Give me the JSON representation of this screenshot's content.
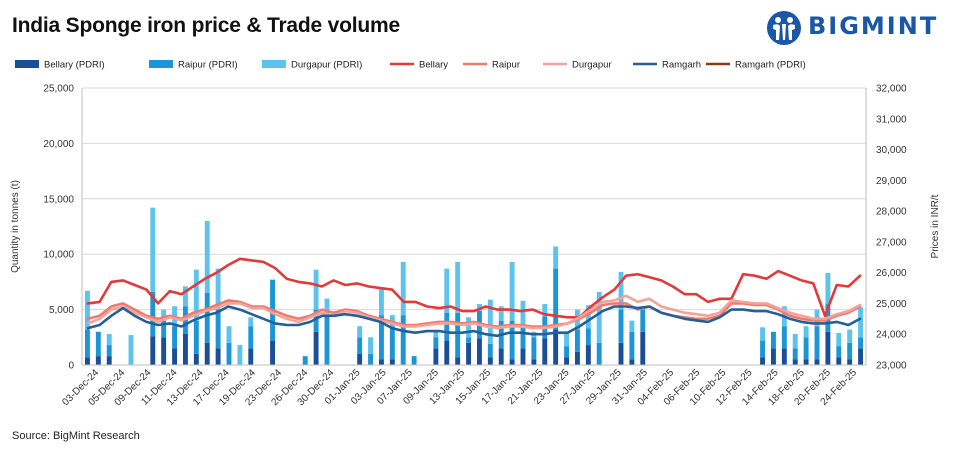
{
  "header": {
    "title": "India Sponge iron price & Trade volume",
    "brand": "BIGMINT"
  },
  "footer": {
    "source": "Source: BigMint Research"
  },
  "colors": {
    "bellary_pdri": "#1a4e96",
    "raipur_pdri": "#1b95d6",
    "durgapur_pdri": "#5bc3ec",
    "bellary": "#e03a3a",
    "raipur": "#ee7a6e",
    "durgapur": "#f2a39a",
    "ramgarh": "#245f97",
    "ramgarh_pdri": "#8b3a17",
    "brand": "#1a57a6"
  },
  "chart_data": {
    "type": "bar",
    "ylabel": "Quantity in tonnes (t)",
    "y2label": "Prices in INR/t",
    "ylim": [
      0,
      25000
    ],
    "y2lim": [
      23000,
      32000
    ],
    "yticks": [
      "0",
      "5,000",
      "10,000",
      "15,000",
      "20,000",
      "25,000"
    ],
    "y2ticks": [
      "23,000",
      "24,000",
      "25,000",
      "26,000",
      "27,000",
      "28,000",
      "29,000",
      "30,000",
      "31,000",
      "32,000"
    ],
    "x_tick_labels": [
      "03-Dec-24",
      "05-Dec-24",
      "09-Dec-24",
      "11-Dec-24",
      "13-Dec-24",
      "17-Dec-24",
      "19-Dec-24",
      "23-Dec-24",
      "26-Dec-24",
      "30-Dec-24",
      "01-Jan-25",
      "03-Jan-25",
      "07-Jan-25",
      "09-Jan-25",
      "13-Jan-25",
      "15-Jan-25",
      "17-Jan-25",
      "21-Jan-25",
      "23-Jan-25",
      "27-Jan-25",
      "29-Jan-25",
      "31-Jan-25",
      "04-Feb-25",
      "06-Feb-25",
      "10-Feb-25",
      "12-Feb-25",
      "14-Feb-25",
      "18-Feb-25",
      "20-Feb-25",
      "24-Feb-25"
    ],
    "grid": true,
    "legend_position": "top",
    "stacked_series": [
      {
        "name": "Bellary (PDRI)",
        "color_key": "bellary_pdri",
        "values": [
          700,
          800,
          800,
          0,
          0,
          0,
          2600,
          2500,
          1500,
          2800,
          1000,
          2000,
          1500,
          0,
          0,
          1500,
          0,
          2200,
          0,
          0,
          0,
          3000,
          0,
          0,
          0,
          1000,
          0,
          500,
          500,
          0,
          0,
          0,
          1500,
          2200,
          700,
          2000,
          2400,
          700,
          1500,
          500,
          1500,
          500,
          2400,
          3200,
          700,
          1200,
          1800,
          0,
          0,
          2000,
          500,
          3000,
          0,
          0,
          0,
          0,
          0,
          0,
          0,
          0,
          0,
          0,
          700,
          1500,
          1500,
          500,
          500,
          500,
          3000,
          700,
          500,
          1500
        ]
      },
      {
        "name": "Raipur (PDRI)",
        "color_key": "raipur_pdri",
        "values": [
          2500,
          2200,
          1000,
          0,
          0,
          0,
          4000,
          1500,
          2000,
          2500,
          3000,
          4500,
          3500,
          2000,
          0,
          2000,
          0,
          5500,
          0,
          0,
          800,
          2000,
          4500,
          0,
          0,
          1500,
          1000,
          4000,
          3000,
          4500,
          800,
          0,
          1000,
          2500,
          4000,
          500,
          2500,
          1200,
          2500,
          3500,
          2000,
          2000,
          2000,
          5500,
          1000,
          2000,
          1500,
          2000,
          0,
          3000,
          2500,
          2000,
          0,
          0,
          0,
          0,
          0,
          0,
          0,
          0,
          0,
          0,
          1500,
          1500,
          2000,
          1000,
          2000,
          3000,
          2500,
          1000,
          1500,
          1000
        ]
      },
      {
        "name": "Durgapur (PDRI)",
        "color_key": "durgapur_pdri",
        "values": [
          3500,
          0,
          1000,
          0,
          2700,
          0,
          7600,
          1000,
          1800,
          1800,
          4600,
          6500,
          3700,
          1500,
          1800,
          800,
          0,
          0,
          0,
          0,
          0,
          3600,
          1500,
          0,
          0,
          1000,
          1500,
          2500,
          1000,
          4800,
          0,
          0,
          600,
          4000,
          4600,
          1800,
          600,
          4000,
          1300,
          5300,
          2300,
          500,
          1100,
          2000,
          1300,
          1800,
          2100,
          4600,
          0,
          3400,
          1000,
          0,
          0,
          0,
          0,
          0,
          0,
          0,
          0,
          0,
          0,
          0,
          1200,
          0,
          1800,
          1300,
          1000,
          1500,
          2800,
          1200,
          1200,
          2700
        ]
      }
    ],
    "line_series": [
      {
        "name": "Bellary",
        "color_key": "bellary",
        "values": [
          25000,
          25050,
          25700,
          25750,
          25600,
          25450,
          25000,
          25400,
          25300,
          25550,
          25800,
          26000,
          26250,
          26450,
          26400,
          26350,
          26150,
          25800,
          25700,
          25650,
          25550,
          25750,
          25600,
          25650,
          25550,
          25500,
          25450,
          25050,
          25050,
          24900,
          24850,
          24900,
          24750,
          24750,
          24900,
          24800,
          24800,
          24750,
          24800,
          24650,
          24600,
          24550,
          24550,
          24900,
          25200,
          25450,
          25900,
          25950,
          25850,
          25750,
          25550,
          25300,
          25300,
          25050,
          25150,
          25150,
          25950,
          25900,
          25800,
          26050,
          25900,
          25750,
          25650,
          24600,
          25600,
          25550,
          25900
        ]
      },
      {
        "name": "Raipur",
        "color_key": "raipur",
        "values": [
          24500,
          24600,
          24900,
          25000,
          24800,
          24600,
          24500,
          24600,
          24500,
          24700,
          24800,
          24950,
          25100,
          25050,
          24900,
          24900,
          24750,
          24600,
          24500,
          24600,
          24800,
          24700,
          24800,
          24750,
          24600,
          24500,
          24400,
          24300,
          24300,
          24350,
          24400,
          24400,
          24350,
          24400,
          24300,
          24250,
          24300,
          24300,
          24250,
          24250,
          24300,
          24350,
          24500,
          24700,
          24950,
          25000,
          25000,
          24800,
          24900,
          24700,
          24600,
          24550,
          24500,
          24500,
          24600,
          25000,
          25000,
          24950,
          24950,
          24800,
          24600,
          24500,
          24450,
          24450,
          24600,
          24700,
          24900
        ]
      },
      {
        "name": "Durgapur",
        "color_key": "durgapur",
        "values": [
          24350,
          24500,
          24800,
          24900,
          24700,
          24550,
          24400,
          24550,
          24450,
          24600,
          24750,
          24850,
          25000,
          25000,
          24850,
          24850,
          24650,
          24500,
          24400,
          24550,
          24700,
          24600,
          24750,
          24700,
          24550,
          24450,
          24350,
          24250,
          24250,
          24300,
          24350,
          24350,
          24300,
          24350,
          24250,
          24200,
          24250,
          24250,
          24200,
          24200,
          24250,
          24350,
          24550,
          24800,
          25050,
          25100,
          25250,
          25050,
          25150,
          24900,
          24800,
          24700,
          24650,
          24600,
          24700,
          25100,
          25050,
          25000,
          25000,
          24850,
          24700,
          24600,
          24500,
          24500,
          24650,
          24750,
          24950
        ]
      },
      {
        "name": "Ramgarh",
        "color_key": "ramgarh",
        "values": [
          24200,
          24300,
          24600,
          24850,
          24600,
          24400,
          24300,
          24350,
          24250,
          24450,
          24600,
          24700,
          24900,
          24800,
          24650,
          24500,
          24350,
          24300,
          24300,
          24400,
          24600,
          24600,
          24650,
          24600,
          24500,
          24400,
          24200,
          24100,
          24050,
          24100,
          24100,
          24050,
          24050,
          24100,
          24000,
          23950,
          24050,
          24050,
          24000,
          24000,
          24050,
          24050,
          24250,
          24500,
          24750,
          24900,
          24900,
          24850,
          24900,
          24700,
          24600,
          24500,
          24450,
          24400,
          24550,
          24800,
          24800,
          24750,
          24750,
          24650,
          24500,
          24400,
          24350,
          24350,
          24400,
          24300,
          24500
        ]
      },
      {
        "name": "Ramgarh (PDRI)",
        "color_key": "ramgarh_pdri",
        "values": []
      }
    ]
  }
}
